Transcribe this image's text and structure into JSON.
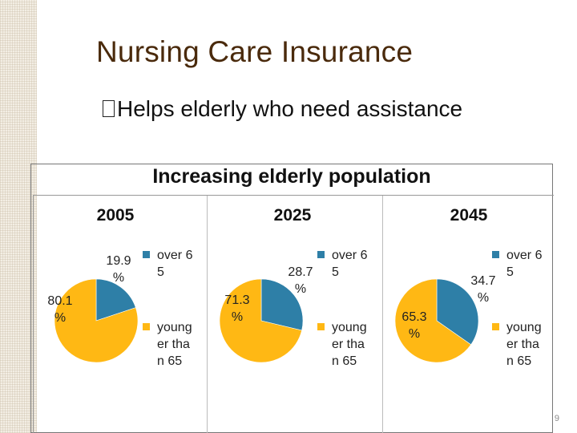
{
  "slide": {
    "title": "Nursing Care Insurance",
    "bullet": "Helps elderly who need assistance",
    "page_number": "9"
  },
  "colors": {
    "over65": "#2e7fa7",
    "younger": "#ffb814",
    "title": "#4a2a0c"
  },
  "chart_data": {
    "type": "pie",
    "title": "Increasing elderly population",
    "legend": [
      {
        "key": "over65",
        "label": "over 65"
      },
      {
        "key": "younger",
        "label": "young er than 65"
      }
    ],
    "pies": [
      {
        "year": "2005",
        "over65": 19.9,
        "younger": 80.1,
        "over65_label": "19.9 %",
        "younger_label": "80.1 %"
      },
      {
        "year": "2025",
        "over65": 28.7,
        "younger": 71.3,
        "over65_label": "28.7 %",
        "younger_label": "71.3 %"
      },
      {
        "year": "2045",
        "over65": 34.7,
        "younger": 65.3,
        "over65_label": "34.7 %",
        "younger_label": "65.3 %"
      }
    ]
  }
}
